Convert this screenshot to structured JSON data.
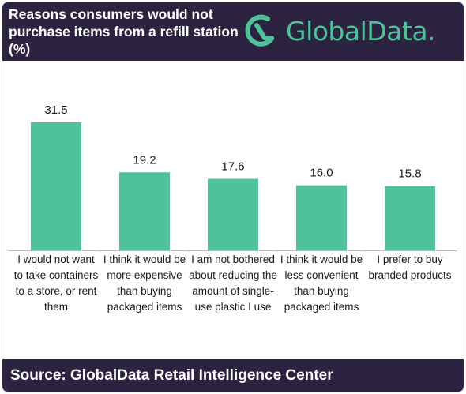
{
  "header": {
    "title": "Reasons consumers would not purchase items from a refill station (%)",
    "logo_text": "GlobalData."
  },
  "footer": {
    "source": "Source:  GlobalData Retail Intelligence Center"
  },
  "colors": {
    "header_bg": "#2b2340",
    "bar": "#4fc29b",
    "brand": "#4fc29b"
  },
  "chart_data": {
    "type": "bar",
    "title": "Reasons consumers would not purchase items from a refill station (%)",
    "categories": [
      "I would not want to take containers to a store, or rent them",
      "I think it would be more expensive than buying packaged items",
      "I am not bothered about reducing the amount of single-use plastic I use",
      "I think it would be less convenient than buying packaged items",
      "I prefer to buy branded products"
    ],
    "values": [
      31.5,
      19.2,
      17.6,
      16.0,
      15.8
    ],
    "value_labels": [
      "31.5",
      "19.2",
      "17.6",
      "16.0",
      "15.8"
    ],
    "ylim": [
      0,
      35
    ],
    "grid": false,
    "legend": "none"
  }
}
